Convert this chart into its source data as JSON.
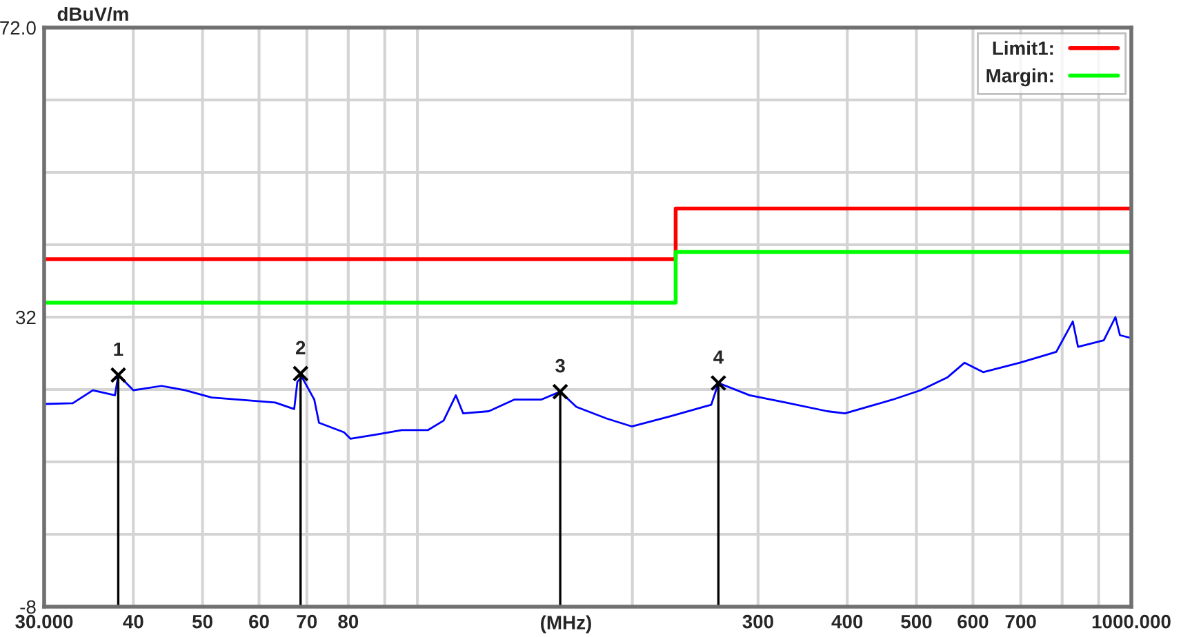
{
  "chart_data": {
    "type": "line",
    "xlabel": "(MHz)",
    "ylabel": "dBuV/m",
    "log": "x",
    "xlim": [
      30,
      1000
    ],
    "xticks": [
      {
        "value": 30,
        "label": "30.000"
      },
      40,
      50,
      60,
      70,
      80,
      {
        "value": 90,
        "label": null
      },
      {
        "value": 100,
        "label": null
      },
      {
        "value": 200,
        "label": null
      },
      300,
      400,
      500,
      600,
      700,
      {
        "value": 800,
        "label": null
      },
      {
        "value": 900,
        "label": null
      },
      {
        "value": 1000,
        "label": "1000.000"
      }
    ],
    "ylim": [
      -8,
      72
    ],
    "yticks": [
      -8,
      {
        "value": 2,
        "label": null
      },
      {
        "value": 12,
        "label": null
      },
      {
        "value": 22,
        "label": null
      },
      32,
      {
        "value": 42,
        "label": null
      },
      {
        "value": 52,
        "label": null
      },
      {
        "value": 62,
        "label": null
      },
      {
        "value": 72,
        "label": "72.0"
      }
    ],
    "grid": true,
    "legend": "top right",
    "series": [
      {
        "color": "#0000ff",
        "x": [
          30,
          32.9,
          35.1,
          37.7,
          38.1,
          40,
          43.8,
          47.3,
          51.5,
          56.1,
          63.2,
          67.2,
          67.9,
          68.9,
          71.7,
          72.8,
          78.9,
          80.6,
          87.8,
          95.1,
          103.5,
          108.8,
          113.2,
          115.9,
          125.9,
          136.6,
          149,
          158.5,
          167,
          184,
          199.6,
          226,
          258,
          264,
          292,
          328,
          375,
          397,
          463,
          507,
          553,
          584,
          620,
          698,
          785,
          828,
          842,
          915,
          950,
          964,
          1000
        ],
        "values": [
          20.0,
          20.1,
          21.9,
          21.2,
          24.0,
          21.9,
          22.5,
          21.9,
          20.9,
          20.6,
          20.2,
          19.3,
          23.1,
          23.7,
          20.6,
          17.4,
          16.1,
          15.2,
          15.8,
          16.4,
          16.4,
          17.7,
          21.2,
          18.7,
          19.0,
          20.6,
          20.6,
          21.7,
          19.6,
          18.0,
          16.9,
          18.3,
          19.9,
          22.9,
          21.2,
          20.2,
          19.0,
          18.7,
          20.6,
          21.9,
          23.7,
          25.7,
          24.4,
          25.7,
          27.2,
          31.4,
          27.9,
          28.8,
          32.0,
          29.5,
          29.1
        ]
      },
      {
        "type": "step",
        "name": "Limit1:",
        "color": "#ff0000",
        "x": [
          30,
          230,
          1000
        ],
        "values": [
          40,
          47,
          47
        ]
      },
      {
        "type": "step",
        "name": "Margin:",
        "color": "#00ff00",
        "x": [
          30,
          230,
          1000
        ],
        "values": [
          34,
          41,
          41
        ]
      },
      {
        "type": "lollipop",
        "color": "#000000",
        "marker": "cross",
        "x": [
          38.1,
          68.6,
          158.5,
          264
        ],
        "values": [
          24.0,
          24.2,
          21.7,
          22.9
        ]
      }
    ],
    "annotations": [
      {
        "text": "1",
        "x": 38.1,
        "y": 24.0
      },
      {
        "text": "2",
        "x": 68.6,
        "y": 24.2
      },
      {
        "text": "3",
        "x": 158.5,
        "y": 21.7
      },
      {
        "text": "4",
        "x": 264,
        "y": 22.9
      }
    ]
  }
}
